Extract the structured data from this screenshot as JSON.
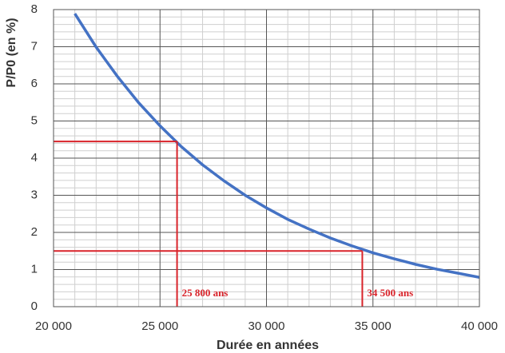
{
  "chart_data": {
    "type": "line",
    "x_label": "Durée en années",
    "y_label": "P/P0 (en %)",
    "x": [
      21000,
      22000,
      23000,
      24000,
      25000,
      26000,
      27000,
      28000,
      29000,
      30000,
      31000,
      32000,
      33000,
      34000,
      35000,
      36000,
      37000,
      38000,
      39000,
      40000
    ],
    "series": [
      {
        "color": "#4472c4",
        "values": [
          7.89,
          6.99,
          6.2,
          5.49,
          4.87,
          4.31,
          3.82,
          3.39,
          3.0,
          2.66,
          2.35,
          2.09,
          1.85,
          1.64,
          1.45,
          1.29,
          1.14,
          1.01,
          0.9,
          0.79
        ]
      }
    ],
    "xlim": [
      20000,
      40000
    ],
    "ylim": [
      0,
      8
    ],
    "xticks": [
      {
        "value": 20000,
        "label": "20 000"
      },
      {
        "value": 25000,
        "label": "25 000"
      },
      {
        "value": 30000,
        "label": "30 000"
      },
      {
        "value": 35000,
        "label": "35 000"
      },
      {
        "value": 40000,
        "label": "40 000"
      }
    ],
    "yticks": [
      0,
      1,
      2,
      3,
      4,
      5,
      6,
      7,
      8
    ],
    "xminorticks": [
      21000,
      22000,
      23000,
      24000,
      26000,
      27000,
      28000,
      29000,
      31000,
      32000,
      33000,
      34000,
      36000,
      37000,
      38000,
      39000
    ],
    "yminorticks": [
      0.2,
      0.4,
      0.6,
      0.8,
      1.2,
      1.4,
      1.6,
      1.8,
      2.2,
      2.4,
      2.6,
      2.8,
      3.2,
      3.4,
      3.6,
      3.8,
      4.2,
      4.4,
      4.6,
      4.8,
      5.2,
      5.4,
      5.6,
      5.8,
      6.2,
      6.4,
      6.6,
      6.8,
      7.2,
      7.4,
      7.6,
      7.8
    ],
    "grid": true,
    "reference_lines": [
      {
        "x": 25800,
        "y": 4.45,
        "label": "25 800 ans",
        "color": "#d9232a"
      },
      {
        "x": 34500,
        "y": 1.5,
        "label": "34 500 ans",
        "color": "#d9232a"
      }
    ]
  }
}
